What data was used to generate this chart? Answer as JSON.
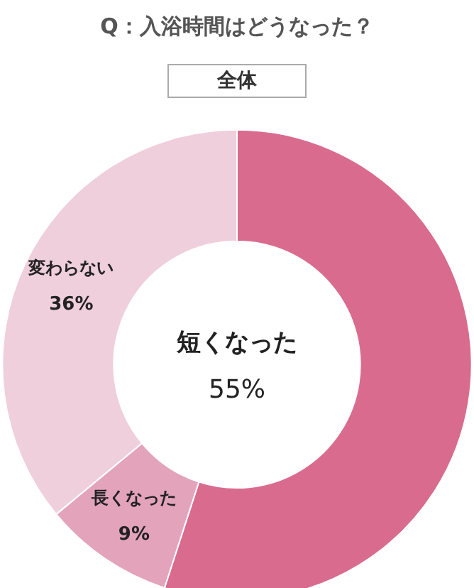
{
  "chart_data": {
    "type": "donut",
    "title": "Q：入浴時間はどうなった？",
    "subtitle": "全体",
    "categories": [
      "短くなった",
      "長くなった",
      "変わらない"
    ],
    "values": [
      55,
      9,
      36
    ],
    "colors": [
      "#d96b8f",
      "#e3a4bb",
      "#efcfdb"
    ],
    "value_labels": [
      "55%",
      "9%",
      "36%"
    ],
    "legend": false
  }
}
